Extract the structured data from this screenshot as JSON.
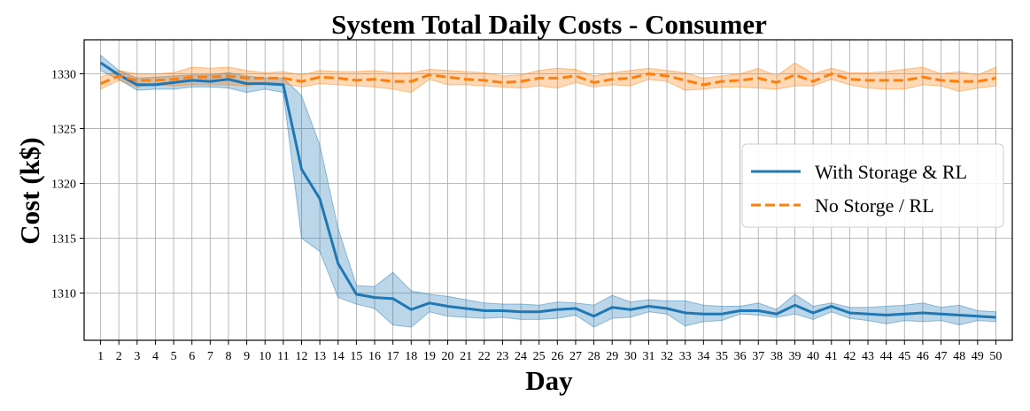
{
  "chart_data": {
    "type": "line",
    "title": "System Total Daily Costs - Consumer",
    "xlabel": "Day",
    "ylabel": "Cost (k$)",
    "x": [
      1,
      2,
      3,
      4,
      5,
      6,
      7,
      8,
      9,
      10,
      11,
      12,
      13,
      14,
      15,
      16,
      17,
      18,
      19,
      20,
      21,
      22,
      23,
      24,
      25,
      26,
      27,
      28,
      29,
      30,
      31,
      32,
      33,
      34,
      35,
      36,
      37,
      38,
      39,
      40,
      41,
      42,
      43,
      44,
      45,
      46,
      47,
      48,
      49,
      50
    ],
    "xlim": [
      0.1,
      50.9
    ],
    "ylim": [
      1305.7,
      1333.1
    ],
    "yticks": [
      1310,
      1315,
      1320,
      1325,
      1330
    ],
    "grid": true,
    "legend_position": "center-right",
    "series": [
      {
        "name": "With Storage & RL",
        "color": "#1f77b4",
        "style": "solid",
        "values": [
          1331.0,
          1329.9,
          1329.0,
          1329.0,
          1329.2,
          1329.4,
          1329.3,
          1329.5,
          1329.1,
          1329.1,
          1329.0,
          1321.3,
          1318.6,
          1312.7,
          1309.9,
          1309.6,
          1309.5,
          1308.5,
          1309.1,
          1308.8,
          1308.6,
          1308.4,
          1308.4,
          1308.3,
          1308.3,
          1308.5,
          1308.6,
          1307.9,
          1308.7,
          1308.5,
          1308.8,
          1308.6,
          1308.2,
          1308.1,
          1308.1,
          1308.4,
          1308.4,
          1308.1,
          1308.9,
          1308.2,
          1308.8,
          1308.2,
          1308.1,
          1308.0,
          1308.1,
          1308.2,
          1308.1,
          1308.0,
          1307.9,
          1307.8
        ],
        "lower": [
          1330.3,
          1329.5,
          1328.5,
          1328.6,
          1328.6,
          1328.8,
          1328.8,
          1328.7,
          1328.3,
          1328.6,
          1328.3,
          1315.0,
          1313.8,
          1309.6,
          1309.0,
          1308.6,
          1307.1,
          1306.9,
          1308.3,
          1307.9,
          1307.8,
          1307.7,
          1307.8,
          1307.6,
          1307.6,
          1307.7,
          1308.0,
          1306.9,
          1307.7,
          1307.8,
          1308.3,
          1308.1,
          1307.0,
          1307.4,
          1307.5,
          1308.1,
          1308.0,
          1307.8,
          1308.1,
          1307.6,
          1308.3,
          1307.7,
          1307.5,
          1307.2,
          1307.5,
          1307.4,
          1307.5,
          1307.1,
          1307.5,
          1307.4
        ],
        "upper": [
          1331.7,
          1330.3,
          1329.6,
          1329.7,
          1329.8,
          1329.9,
          1329.9,
          1330.1,
          1329.8,
          1329.6,
          1329.6,
          1328.0,
          1323.5,
          1315.9,
          1310.7,
          1310.6,
          1311.9,
          1310.2,
          1309.9,
          1309.7,
          1309.4,
          1309.1,
          1309.0,
          1309.0,
          1308.9,
          1309.2,
          1309.1,
          1308.9,
          1309.8,
          1309.2,
          1309.4,
          1309.3,
          1309.3,
          1308.9,
          1308.8,
          1308.8,
          1309.1,
          1308.5,
          1309.9,
          1308.8,
          1309.1,
          1308.7,
          1308.7,
          1308.8,
          1308.9,
          1309.1,
          1308.7,
          1308.9,
          1308.4,
          1308.3
        ]
      },
      {
        "name": "No Storge / RL",
        "color": "#ff7f0e",
        "style": "dashed",
        "values": [
          1329.1,
          1329.8,
          1329.4,
          1329.4,
          1329.5,
          1329.7,
          1329.7,
          1329.8,
          1329.6,
          1329.6,
          1329.6,
          1329.3,
          1329.7,
          1329.6,
          1329.4,
          1329.5,
          1329.3,
          1329.3,
          1329.9,
          1329.7,
          1329.5,
          1329.4,
          1329.2,
          1329.3,
          1329.6,
          1329.6,
          1329.8,
          1329.2,
          1329.5,
          1329.6,
          1330.0,
          1329.8,
          1329.4,
          1329.0,
          1329.3,
          1329.4,
          1329.6,
          1329.2,
          1329.9,
          1329.3,
          1330.0,
          1329.5,
          1329.4,
          1329.4,
          1329.4,
          1329.7,
          1329.4,
          1329.3,
          1329.3,
          1329.6
        ],
        "lower": [
          1328.6,
          1329.4,
          1328.8,
          1329.0,
          1328.9,
          1329.0,
          1329.0,
          1329.0,
          1328.9,
          1329.2,
          1329.1,
          1328.8,
          1329.1,
          1329.0,
          1328.9,
          1328.8,
          1328.6,
          1328.3,
          1329.5,
          1329.0,
          1329.0,
          1328.9,
          1328.8,
          1328.7,
          1328.9,
          1328.7,
          1329.2,
          1328.8,
          1329.0,
          1328.9,
          1329.5,
          1329.3,
          1328.5,
          1328.6,
          1328.8,
          1328.8,
          1328.7,
          1328.6,
          1328.9,
          1328.9,
          1329.5,
          1329.0,
          1328.7,
          1328.6,
          1328.6,
          1329.0,
          1328.9,
          1328.4,
          1328.7,
          1328.9
        ],
        "upper": [
          1329.7,
          1330.3,
          1330.0,
          1330.0,
          1330.1,
          1330.6,
          1330.5,
          1330.6,
          1330.3,
          1330.1,
          1330.2,
          1329.9,
          1330.3,
          1330.2,
          1330.2,
          1330.3,
          1330.1,
          1330.1,
          1330.4,
          1330.3,
          1330.2,
          1330.1,
          1329.8,
          1329.9,
          1330.3,
          1330.5,
          1330.4,
          1329.8,
          1330.1,
          1330.3,
          1330.5,
          1330.3,
          1330.1,
          1329.6,
          1329.8,
          1330.0,
          1330.5,
          1329.8,
          1331.0,
          1330.0,
          1330.5,
          1330.1,
          1330.1,
          1330.2,
          1330.4,
          1330.6,
          1330.0,
          1330.2,
          1329.9,
          1330.6
        ]
      }
    ]
  }
}
